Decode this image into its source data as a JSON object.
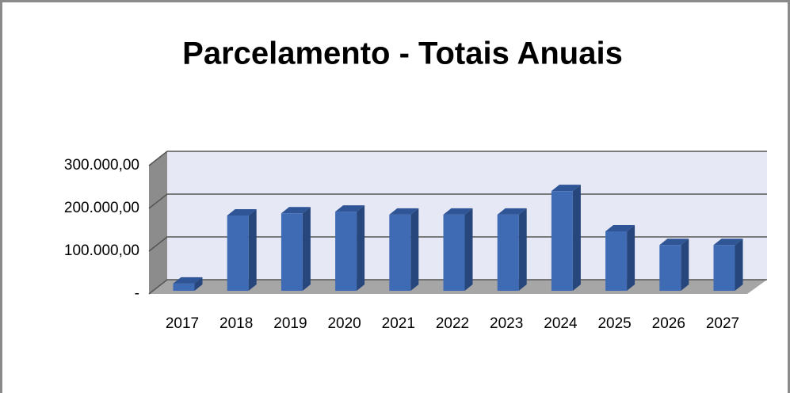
{
  "chart_data": {
    "type": "bar3d",
    "title": "Parcelamento - Totais Anuais",
    "categories": [
      "2017",
      "2018",
      "2019",
      "2020",
      "2021",
      "2022",
      "2023",
      "2024",
      "2025",
      "2026",
      "2027"
    ],
    "values": [
      17000,
      176000,
      181000,
      185000,
      178000,
      178000,
      178000,
      233000,
      139000,
      107000,
      107000
    ],
    "color": "#3f6bb5",
    "ylim": [
      0,
      300000
    ],
    "yticks": [
      {
        "value": 0,
        "label": "-"
      },
      {
        "value": 100000,
        "label": "100.000,00"
      },
      {
        "value": 200000,
        "label": "200.000,00"
      },
      {
        "value": 300000,
        "label": "300.000,00"
      }
    ],
    "grid": true
  }
}
